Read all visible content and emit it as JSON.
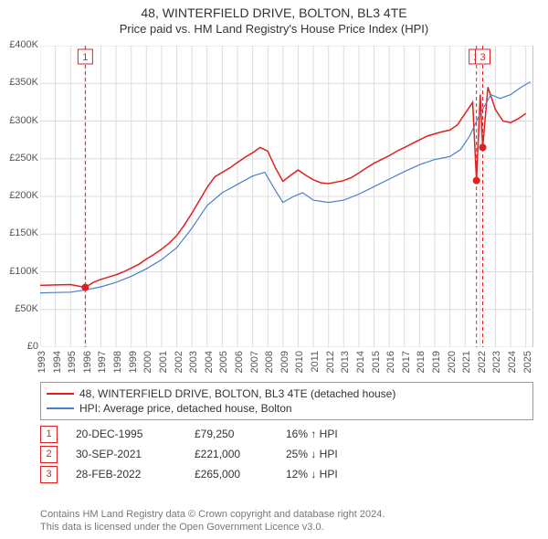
{
  "title": "48, WINTERFIELD DRIVE, BOLTON, BL3 4TE",
  "subtitle": "Price paid vs. HM Land Registry's House Price Index (HPI)",
  "chart": {
    "type": "line",
    "background_color": "#ffffff",
    "grid_color": "#dddddd",
    "axis_color": "#888888",
    "xlim": [
      1993,
      2025.5
    ],
    "ylim": [
      0,
      400000
    ],
    "ytick_step": 50000,
    "ytick_prefix": "£",
    "ytick_suffix": "K",
    "ytick_labels": [
      "£0",
      "£50K",
      "£100K",
      "£150K",
      "£200K",
      "£250K",
      "£300K",
      "£350K",
      "£400K"
    ],
    "xtick_step": 1,
    "xtick_labels": [
      "1993",
      "1994",
      "1995",
      "1996",
      "1997",
      "1998",
      "1999",
      "2000",
      "2001",
      "2002",
      "2003",
      "2004",
      "2005",
      "2006",
      "2007",
      "2008",
      "2009",
      "2010",
      "2011",
      "2012",
      "2013",
      "2014",
      "2015",
      "2016",
      "2017",
      "2018",
      "2019",
      "2020",
      "2021",
      "2022",
      "2023",
      "2024",
      "2025"
    ],
    "series": [
      {
        "name": "48, WINTERFIELD DRIVE, BOLTON, BL3 4TE (detached house)",
        "color": "#e02020",
        "width": 1.5,
        "data": [
          [
            1993.0,
            82000
          ],
          [
            1994.0,
            82500
          ],
          [
            1995.0,
            83000
          ],
          [
            1995.97,
            79250
          ],
          [
            1996.5,
            86000
          ],
          [
            1997.0,
            90000
          ],
          [
            1997.5,
            93000
          ],
          [
            1998.0,
            96000
          ],
          [
            1998.5,
            100000
          ],
          [
            1999.0,
            105000
          ],
          [
            1999.5,
            110000
          ],
          [
            2000.0,
            117000
          ],
          [
            2000.5,
            123000
          ],
          [
            2001.0,
            130000
          ],
          [
            2001.5,
            138000
          ],
          [
            2002.0,
            148000
          ],
          [
            2002.5,
            162000
          ],
          [
            2003.0,
            178000
          ],
          [
            2003.5,
            195000
          ],
          [
            2004.0,
            212000
          ],
          [
            2004.5,
            226000
          ],
          [
            2005.0,
            232000
          ],
          [
            2005.5,
            238000
          ],
          [
            2006.0,
            245000
          ],
          [
            2006.5,
            252000
          ],
          [
            2007.0,
            258000
          ],
          [
            2007.5,
            265000
          ],
          [
            2008.0,
            260000
          ],
          [
            2008.5,
            238000
          ],
          [
            2009.0,
            220000
          ],
          [
            2009.5,
            228000
          ],
          [
            2010.0,
            235000
          ],
          [
            2010.5,
            228000
          ],
          [
            2011.0,
            222000
          ],
          [
            2011.5,
            218000
          ],
          [
            2012.0,
            217000
          ],
          [
            2012.5,
            219000
          ],
          [
            2013.0,
            221000
          ],
          [
            2013.5,
            225000
          ],
          [
            2014.0,
            231000
          ],
          [
            2014.5,
            238000
          ],
          [
            2015.0,
            244000
          ],
          [
            2015.5,
            249000
          ],
          [
            2016.0,
            254000
          ],
          [
            2016.5,
            260000
          ],
          [
            2017.0,
            265000
          ],
          [
            2017.5,
            270000
          ],
          [
            2018.0,
            275000
          ],
          [
            2018.5,
            280000
          ],
          [
            2019.0,
            283000
          ],
          [
            2019.5,
            286000
          ],
          [
            2020.0,
            288000
          ],
          [
            2020.5,
            295000
          ],
          [
            2021.0,
            310000
          ],
          [
            2021.5,
            325000
          ],
          [
            2021.75,
            221000
          ],
          [
            2022.0,
            335000
          ],
          [
            2022.16,
            265000
          ],
          [
            2022.5,
            345000
          ],
          [
            2023.0,
            315000
          ],
          [
            2023.5,
            300000
          ],
          [
            2024.0,
            298000
          ],
          [
            2024.5,
            303000
          ],
          [
            2025.0,
            310000
          ]
        ]
      },
      {
        "name": "HPI: Average price, detached house, Bolton",
        "color": "#4a7ec8",
        "width": 1.2,
        "data": [
          [
            1993.0,
            72000
          ],
          [
            1994.0,
            72500
          ],
          [
            1995.0,
            73000
          ],
          [
            1996.0,
            76000
          ],
          [
            1997.0,
            80000
          ],
          [
            1998.0,
            86000
          ],
          [
            1999.0,
            94000
          ],
          [
            2000.0,
            104000
          ],
          [
            2001.0,
            116000
          ],
          [
            2002.0,
            132000
          ],
          [
            2003.0,
            158000
          ],
          [
            2004.0,
            188000
          ],
          [
            2005.0,
            205000
          ],
          [
            2006.0,
            216000
          ],
          [
            2007.0,
            227000
          ],
          [
            2007.8,
            232000
          ],
          [
            2008.5,
            208000
          ],
          [
            2009.0,
            192000
          ],
          [
            2009.7,
            200000
          ],
          [
            2010.3,
            205000
          ],
          [
            2011.0,
            195000
          ],
          [
            2012.0,
            192000
          ],
          [
            2013.0,
            195000
          ],
          [
            2014.0,
            203000
          ],
          [
            2015.0,
            213000
          ],
          [
            2016.0,
            223000
          ],
          [
            2017.0,
            233000
          ],
          [
            2018.0,
            242000
          ],
          [
            2019.0,
            249000
          ],
          [
            2020.0,
            253000
          ],
          [
            2020.7,
            262000
          ],
          [
            2021.3,
            280000
          ],
          [
            2022.0,
            310000
          ],
          [
            2022.7,
            335000
          ],
          [
            2023.3,
            330000
          ],
          [
            2024.0,
            335000
          ],
          [
            2024.7,
            345000
          ],
          [
            2025.3,
            352000
          ]
        ]
      }
    ],
    "event_markers": [
      {
        "num": "1",
        "x": 1995.97,
        "y": 79250,
        "color": "#e02020"
      },
      {
        "num": "2",
        "x": 2021.75,
        "y": 221000,
        "color": "#e02020"
      },
      {
        "num": "3",
        "x": 2022.16,
        "y": 265000,
        "color": "#e02020"
      }
    ],
    "event_line_dash": "4,3",
    "event_marker_radius": 4
  },
  "legend": [
    {
      "color": "#e02020",
      "label": "48, WINTERFIELD DRIVE, BOLTON, BL3 4TE (detached house)"
    },
    {
      "color": "#4a7ec8",
      "label": "HPI: Average price, detached house, Bolton"
    }
  ],
  "events": [
    {
      "num": "1",
      "color": "#e02020",
      "date": "20-DEC-1995",
      "price": "£79,250",
      "diff": "16% ↑ HPI"
    },
    {
      "num": "2",
      "color": "#e02020",
      "date": "30-SEP-2021",
      "price": "£221,000",
      "diff": "25% ↓ HPI"
    },
    {
      "num": "3",
      "color": "#e02020",
      "date": "28-FEB-2022",
      "price": "£265,000",
      "diff": "12% ↓ HPI"
    }
  ],
  "footer_line1": "Contains HM Land Registry data © Crown copyright and database right 2024.",
  "footer_line2": "This data is licensed under the Open Government Licence v3.0."
}
